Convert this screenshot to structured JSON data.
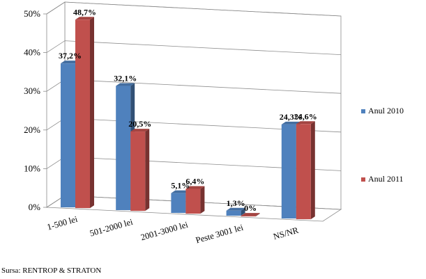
{
  "chart_data": {
    "type": "bar",
    "title": "",
    "xlabel": "",
    "ylabel": "",
    "categories": [
      "1-500 lei",
      "501-2000 lei",
      "2001-3000 lei",
      "Peste 3001 lei",
      "NS/NR"
    ],
    "series": [
      {
        "name": "Anul 2010",
        "values": [
          37.2,
          32.1,
          5.1,
          1.3,
          24.3
        ],
        "labels": [
          "37,2%",
          "32,1%",
          "5,1%",
          "1,3%",
          "24,3%"
        ]
      },
      {
        "name": "Anul 2011",
        "values": [
          48.7,
          20.5,
          6.4,
          0,
          24.6
        ],
        "labels": [
          "48,7%",
          "20,5%",
          "6,4%",
          "0%",
          "24,6%"
        ]
      }
    ],
    "ylim": [
      0,
      50
    ],
    "yticks": [
      0,
      10,
      20,
      30,
      40,
      50
    ],
    "ytick_labels": [
      "0%",
      "10%",
      "20%",
      "30%",
      "40%",
      "50%"
    ],
    "grid": true,
    "legend_position": "right",
    "three_d": true,
    "colors": {
      "series_2010": "#4F81BD",
      "series_2011": "#C0504D"
    }
  },
  "source": "Sursa: RENTROP & STRATON"
}
